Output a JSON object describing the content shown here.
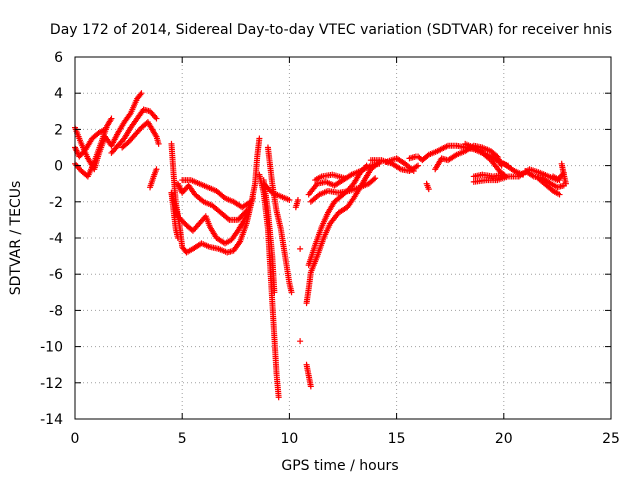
{
  "chart_data": {
    "type": "scatter",
    "title": "Day 172 of 2014, Sidereal Day-to-day VTEC variation (SDTVAR) for receiver hnis",
    "xlabel": "GPS time / hours",
    "ylabel": "SDTVAR / TECUs",
    "xlim": [
      0,
      25
    ],
    "ylim": [
      -14,
      6
    ],
    "xticks": [
      0,
      5,
      10,
      15,
      20,
      25
    ],
    "yticks": [
      -14,
      -12,
      -10,
      -8,
      -6,
      -4,
      -2,
      0,
      2,
      4,
      6
    ],
    "grid": true,
    "marker": "+",
    "color": "#ff0000",
    "series": [
      {
        "name": "SDTVAR",
        "tracks": [
          [
            [
              0,
              2.1
            ],
            [
              0.3,
              1.2
            ],
            [
              0.6,
              0.4
            ],
            [
              0.9,
              -0.2
            ],
            [
              1.1,
              0.6
            ],
            [
              1.4,
              1.6
            ],
            [
              1.7,
              1.1
            ],
            [
              2.0,
              1.8
            ],
            [
              2.3,
              2.4
            ],
            [
              2.6,
              2.9
            ],
            [
              2.9,
              3.7
            ],
            [
              3.1,
              4.0
            ]
          ],
          [
            [
              0,
              0.1
            ],
            [
              0.3,
              -0.3
            ],
            [
              0.6,
              -0.6
            ],
            [
              0.9,
              0.2
            ],
            [
              1.2,
              1.2
            ],
            [
              1.5,
              2.2
            ],
            [
              1.7,
              2.6
            ]
          ],
          [
            [
              0,
              1.0
            ],
            [
              0.2,
              0.5
            ],
            [
              0.5,
              0.9
            ],
            [
              0.8,
              1.5
            ],
            [
              1.1,
              1.8
            ],
            [
              1.4,
              2.0
            ]
          ],
          [
            [
              1.7,
              0.7
            ],
            [
              2.0,
              1.1
            ],
            [
              2.3,
              1.5
            ],
            [
              2.6,
              2.1
            ],
            [
              2.9,
              2.6
            ],
            [
              3.2,
              3.1
            ],
            [
              3.5,
              3.0
            ],
            [
              3.8,
              2.6
            ]
          ],
          [
            [
              2.2,
              1.0
            ],
            [
              2.5,
              1.3
            ],
            [
              2.8,
              1.7
            ],
            [
              3.1,
              2.1
            ],
            [
              3.4,
              2.4
            ],
            [
              3.6,
              2.0
            ],
            [
              3.8,
              1.6
            ],
            [
              3.9,
              1.2
            ]
          ],
          [
            [
              3.5,
              -1.2
            ],
            [
              3.7,
              -0.5
            ],
            [
              3.8,
              -0.2
            ]
          ],
          [
            [
              4.5,
              1.2
            ],
            [
              4.6,
              -0.5
            ],
            [
              4.7,
              -2.0
            ],
            [
              4.9,
              -3.5
            ],
            [
              5.0,
              -4.5
            ],
            [
              5.2,
              -4.8
            ],
            [
              5.5,
              -4.6
            ],
            [
              5.9,
              -4.3
            ],
            [
              6.3,
              -4.5
            ],
            [
              6.7,
              -4.6
            ],
            [
              7.1,
              -4.8
            ],
            [
              7.4,
              -4.7
            ],
            [
              7.7,
              -4.2
            ],
            [
              8.0,
              -3.2
            ],
            [
              8.2,
              -2.2
            ],
            [
              8.4,
              -1.0
            ],
            [
              8.5,
              0.5
            ],
            [
              8.6,
              1.5
            ]
          ],
          [
            [
              4.8,
              -1.0
            ],
            [
              5.0,
              -1.5
            ],
            [
              5.3,
              -1.1
            ],
            [
              5.6,
              -1.6
            ],
            [
              6.0,
              -2.0
            ],
            [
              6.4,
              -2.2
            ],
            [
              6.8,
              -2.6
            ],
            [
              7.2,
              -3.0
            ],
            [
              7.6,
              -3.0
            ],
            [
              8.0,
              -2.5
            ]
          ],
          [
            [
              5.0,
              -0.8
            ],
            [
              5.4,
              -0.8
            ],
            [
              5.8,
              -1.0
            ],
            [
              6.2,
              -1.2
            ],
            [
              6.6,
              -1.4
            ],
            [
              7.0,
              -1.8
            ],
            [
              7.4,
              -2.0
            ],
            [
              7.8,
              -2.3
            ],
            [
              8.2,
              -2.0
            ]
          ],
          [
            [
              4.5,
              -1.5
            ],
            [
              4.8,
              -2.8
            ],
            [
              5.2,
              -3.3
            ],
            [
              5.5,
              -3.6
            ],
            [
              5.8,
              -3.2
            ],
            [
              6.1,
              -2.8
            ],
            [
              6.3,
              -3.4
            ],
            [
              6.6,
              -4.0
            ],
            [
              7.0,
              -4.3
            ],
            [
              7.3,
              -4.1
            ],
            [
              7.6,
              -3.6
            ],
            [
              7.9,
              -3.0
            ],
            [
              8.1,
              -2.4
            ],
            [
              8.3,
              -1.8
            ]
          ],
          [
            [
              4.5,
              -1.5
            ],
            [
              4.7,
              -3.5
            ],
            [
              4.8,
              -4.0
            ]
          ],
          [
            [
              8.6,
              -0.5
            ],
            [
              8.8,
              -1.5
            ],
            [
              9.0,
              -3.5
            ],
            [
              9.1,
              -5.5
            ],
            [
              9.2,
              -7.5
            ],
            [
              9.3,
              -9.5
            ],
            [
              9.4,
              -11.5
            ],
            [
              9.5,
              -12.8
            ]
          ],
          [
            [
              8.8,
              -0.8
            ],
            [
              9.0,
              -2.5
            ],
            [
              9.2,
              -5.0
            ],
            [
              9.3,
              -7.0
            ]
          ],
          [
            [
              9.0,
              1.0
            ],
            [
              9.2,
              -1.0
            ],
            [
              9.4,
              -2.5
            ],
            [
              9.6,
              -3.5
            ],
            [
              9.8,
              -5.0
            ],
            [
              10.0,
              -6.5
            ],
            [
              10.1,
              -7.0
            ]
          ],
          [
            [
              8.8,
              -1.0
            ],
            [
              9.2,
              -1.5
            ],
            [
              9.6,
              -1.7
            ],
            [
              10.0,
              -1.9
            ]
          ],
          [
            [
              10.3,
              -2.3
            ],
            [
              10.4,
              -1.9
            ]
          ],
          [
            [
              10.5,
              -4.6
            ]
          ],
          [
            [
              10.5,
              -9.7
            ]
          ],
          [
            [
              10.8,
              -11.0
            ],
            [
              10.9,
              -11.6
            ],
            [
              11.0,
              -12.2
            ]
          ],
          [
            [
              10.8,
              -7.6
            ],
            [
              10.9,
              -6.8
            ],
            [
              11.0,
              -5.9
            ],
            [
              11.3,
              -5.0
            ],
            [
              11.6,
              -4.0
            ],
            [
              11.9,
              -3.2
            ],
            [
              12.3,
              -2.6
            ],
            [
              12.7,
              -2.3
            ],
            [
              13.0,
              -1.8
            ],
            [
              13.4,
              -1.0
            ],
            [
              13.8,
              -0.2
            ],
            [
              14.2,
              0.2
            ]
          ],
          [
            [
              10.9,
              -5.5
            ],
            [
              11.2,
              -4.4
            ],
            [
              11.5,
              -3.4
            ],
            [
              11.8,
              -2.6
            ],
            [
              12.1,
              -2.0
            ],
            [
              12.4,
              -1.7
            ],
            [
              12.7,
              -1.4
            ],
            [
              13.0,
              -1.0
            ],
            [
              13.3,
              -0.4
            ],
            [
              13.6,
              0.0
            ]
          ],
          [
            [
              10.9,
              -1.6
            ],
            [
              11.3,
              -1.0
            ],
            [
              11.7,
              -0.9
            ],
            [
              12.1,
              -1.1
            ],
            [
              12.5,
              -0.8
            ],
            [
              12.9,
              -0.5
            ],
            [
              13.3,
              -0.3
            ],
            [
              13.8,
              0.0
            ],
            [
              14.2,
              0.1
            ]
          ],
          [
            [
              11.0,
              -2.0
            ],
            [
              11.4,
              -1.6
            ],
            [
              11.8,
              -1.4
            ],
            [
              12.3,
              -1.5
            ],
            [
              12.8,
              -1.4
            ],
            [
              13.3,
              -1.2
            ],
            [
              13.7,
              -1.0
            ],
            [
              14.0,
              -0.7
            ]
          ],
          [
            [
              11.2,
              -0.8
            ],
            [
              11.5,
              -0.6
            ],
            [
              12.0,
              -0.5
            ],
            [
              12.6,
              -0.7
            ]
          ],
          [
            [
              13.8,
              0.3
            ],
            [
              14.3,
              0.3
            ],
            [
              14.8,
              0.1
            ],
            [
              15.2,
              -0.2
            ],
            [
              15.6,
              -0.3
            ],
            [
              16.0,
              0.0
            ]
          ],
          [
            [
              14.5,
              0.2
            ],
            [
              15.0,
              0.4
            ],
            [
              15.4,
              0.1
            ],
            [
              15.8,
              -0.3
            ]
          ],
          [
            [
              16.0,
              0.5
            ],
            [
              16.2,
              0.3
            ],
            [
              16.5,
              0.6
            ],
            [
              16.9,
              0.8
            ],
            [
              17.4,
              1.1
            ],
            [
              17.8,
              1.1
            ],
            [
              18.2,
              1.0
            ],
            [
              18.6,
              0.9
            ],
            [
              19.0,
              0.7
            ],
            [
              19.4,
              0.5
            ],
            [
              19.8,
              0.2
            ],
            [
              20.2,
              0.0
            ]
          ],
          [
            [
              16.4,
              -1.0
            ],
            [
              16.5,
              -1.3
            ]
          ],
          [
            [
              16.8,
              -0.2
            ],
            [
              17.1,
              0.4
            ],
            [
              17.4,
              0.3
            ],
            [
              17.8,
              0.6
            ],
            [
              18.2,
              0.8
            ],
            [
              18.6,
              1.1
            ],
            [
              19.0,
              1.0
            ],
            [
              19.4,
              0.8
            ],
            [
              19.7,
              0.5
            ],
            [
              19.9,
              0.0
            ]
          ],
          [
            [
              15.6,
              0.4
            ],
            [
              15.9,
              0.5
            ]
          ],
          [
            [
              19.0,
              0.7
            ],
            [
              19.4,
              0.3
            ],
            [
              19.8,
              -0.3
            ],
            [
              20.1,
              -0.6
            ]
          ],
          [
            [
              18.2,
              1.2
            ],
            [
              18.6,
              1.0
            ],
            [
              19.0,
              0.8
            ]
          ],
          [
            [
              18.6,
              -0.6
            ],
            [
              19.0,
              -0.5
            ],
            [
              19.5,
              -0.6
            ],
            [
              20.0,
              -0.5
            ]
          ],
          [
            [
              18.6,
              -0.9
            ],
            [
              19.2,
              -0.8
            ],
            [
              19.7,
              -0.8
            ],
            [
              20.2,
              -0.6
            ],
            [
              20.7,
              -0.6
            ]
          ],
          [
            [
              20.0,
              0.1
            ],
            [
              20.5,
              -0.3
            ],
            [
              20.9,
              -0.5
            ]
          ],
          [
            [
              20.7,
              -0.6
            ],
            [
              21.2,
              -0.2
            ],
            [
              21.7,
              -0.4
            ],
            [
              22.1,
              -0.6
            ],
            [
              22.5,
              -0.8
            ],
            [
              22.8,
              -0.4
            ]
          ],
          [
            [
              21.0,
              -0.3
            ],
            [
              21.4,
              -0.6
            ],
            [
              21.8,
              -0.7
            ],
            [
              22.2,
              -1.0
            ],
            [
              22.5,
              -1.2
            ],
            [
              22.8,
              -1.1
            ]
          ],
          [
            [
              21.6,
              -0.7
            ],
            [
              22.0,
              -1.1
            ],
            [
              22.3,
              -1.4
            ],
            [
              22.6,
              -1.6
            ]
          ],
          [
            [
              22.3,
              -0.6
            ],
            [
              22.6,
              -0.8
            ]
          ],
          [
            [
              22.7,
              0.1
            ],
            [
              22.8,
              -0.5
            ],
            [
              22.9,
              -1.0
            ]
          ]
        ]
      }
    ]
  }
}
